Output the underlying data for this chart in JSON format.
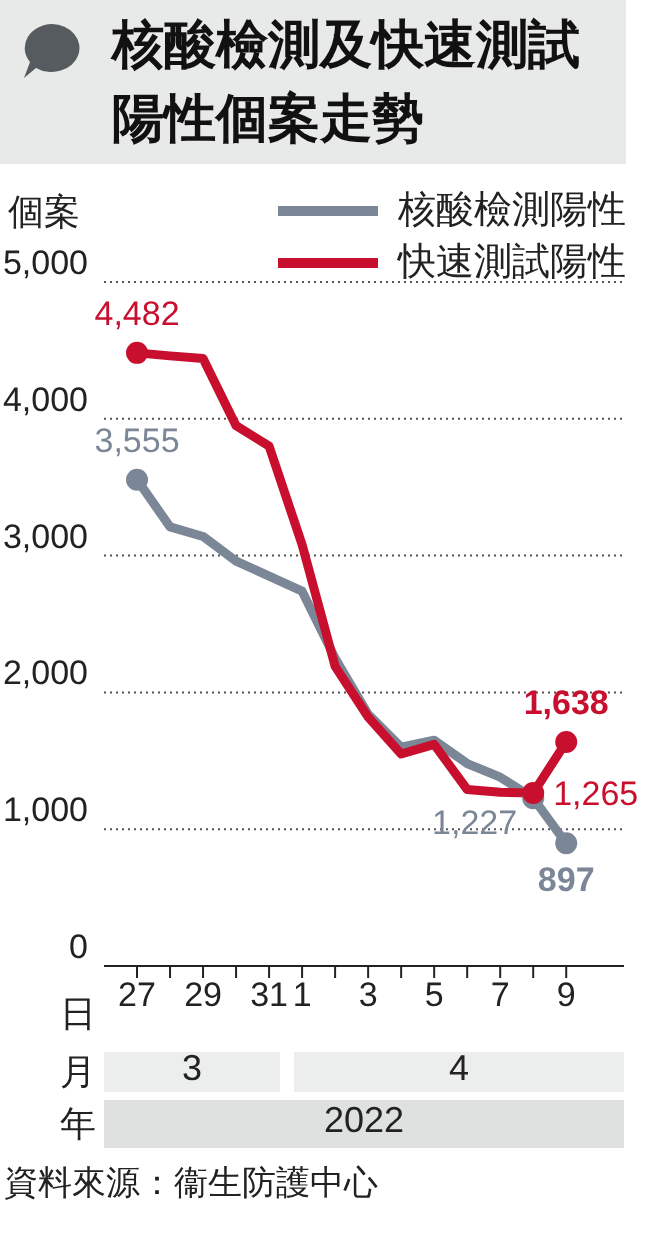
{
  "chart_data": {
    "type": "line",
    "title": "核酸檢測及快速測試陽性個案走勢",
    "ylabel": "個案",
    "x": [
      "2022-03-27",
      "2022-03-28",
      "2022-03-29",
      "2022-03-30",
      "2022-03-31",
      "2022-04-01",
      "2022-04-02",
      "2022-04-03",
      "2022-04-04",
      "2022-04-05",
      "2022-04-06",
      "2022-04-07",
      "2022-04-08",
      "2022-04-09"
    ],
    "series": [
      {
        "name": "核酸檢測陽性",
        "color": "#7b8796",
        "values": [
          3555,
          3210,
          3140,
          2960,
          2850,
          2740,
          2250,
          1840,
          1600,
          1650,
          1480,
          1380,
          1227,
          897
        ],
        "value_labels": [
          "3,555",
          null,
          null,
          null,
          null,
          null,
          null,
          null,
          null,
          null,
          null,
          null,
          "1,227",
          "897"
        ]
      },
      {
        "name": "快速測試陽性",
        "color": "#c8102e",
        "values": [
          4482,
          4460,
          4440,
          3950,
          3800,
          3080,
          2190,
          1820,
          1550,
          1620,
          1290,
          1270,
          1265,
          1638
        ],
        "value_labels": [
          "4,482",
          null,
          null,
          null,
          null,
          null,
          null,
          null,
          null,
          null,
          null,
          null,
          "1,265",
          "1,638"
        ]
      }
    ],
    "xlim": [
      "2022-03-26",
      "2022-04-10T18:00"
    ],
    "xticks": [
      {
        "value": "2022-03-27",
        "label": "27"
      },
      {
        "value": "2022-03-28",
        "label": null
      },
      {
        "value": "2022-03-29",
        "label": "29"
      },
      {
        "value": "2022-03-30",
        "label": null
      },
      {
        "value": "2022-03-31",
        "label": "31"
      },
      {
        "value": "2022-04-01",
        "label": "1"
      },
      {
        "value": "2022-04-02",
        "label": null
      },
      {
        "value": "2022-04-03",
        "label": "3"
      },
      {
        "value": "2022-04-04",
        "label": null
      },
      {
        "value": "2022-04-05",
        "label": "5"
      },
      {
        "value": "2022-04-06",
        "label": null
      },
      {
        "value": "2022-04-07",
        "label": "7"
      },
      {
        "value": "2022-04-08",
        "label": null
      },
      {
        "value": "2022-04-09",
        "label": "9"
      }
    ],
    "ylim": [
      0,
      5000
    ],
    "yticks": [
      {
        "value": 0,
        "label": "0"
      },
      {
        "value": 1000,
        "label": "1,000"
      },
      {
        "value": 2000,
        "label": "2,000"
      },
      {
        "value": 3000,
        "label": "3,000"
      },
      {
        "value": 4000,
        "label": "4,000"
      },
      {
        "value": 5000,
        "label": "5,000"
      }
    ],
    "grid": "y",
    "legend": "top right",
    "line_style": "solid",
    "annotations": [
      "日",
      "月",
      "3",
      "4",
      "年",
      "2022",
      "資料來源：衞生防護中心"
    ]
  }
}
